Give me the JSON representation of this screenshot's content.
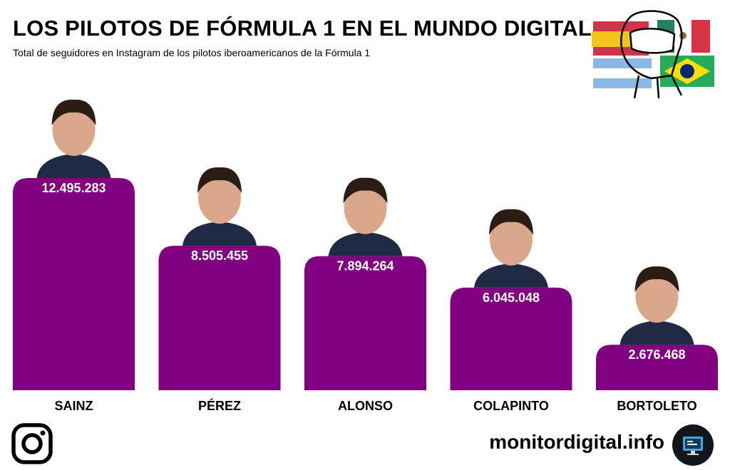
{
  "header": {
    "title": "LOS PILOTOS DE FÓRMULA 1 EN EL MUNDO DIGITAL",
    "subtitle": "Total de seguidores en Instagram de los pilotos iberoamericanos de la Fórmula 1"
  },
  "footer": {
    "brand": "monitordigital.info",
    "instagram_icon": "instagram-icon",
    "brand_icon": "monitor-icon"
  },
  "colors": {
    "bar": "#800080",
    "value_text": "#ffffff",
    "label_text": "#000000"
  },
  "chart_data": {
    "type": "bar",
    "categories": [
      "SAINZ",
      "PÉREZ",
      "ALONSO",
      "COLAPINTO",
      "BORTOLETO"
    ],
    "values": [
      12495283,
      8505455,
      7894264,
      6045048,
      2676468
    ],
    "value_labels": [
      "12.495.283",
      "8.505.455",
      "7.894.264",
      "6.045.048",
      "2.676.468"
    ],
    "title": "LOS PILOTOS DE FÓRMULA 1 EN EL MUNDO DIGITAL",
    "subtitle": "Total de seguidores en Instagram de los pilotos iberoamericanos de la Fórmula 1",
    "xlabel": "",
    "ylabel": "",
    "grid": false,
    "legend": "none"
  }
}
